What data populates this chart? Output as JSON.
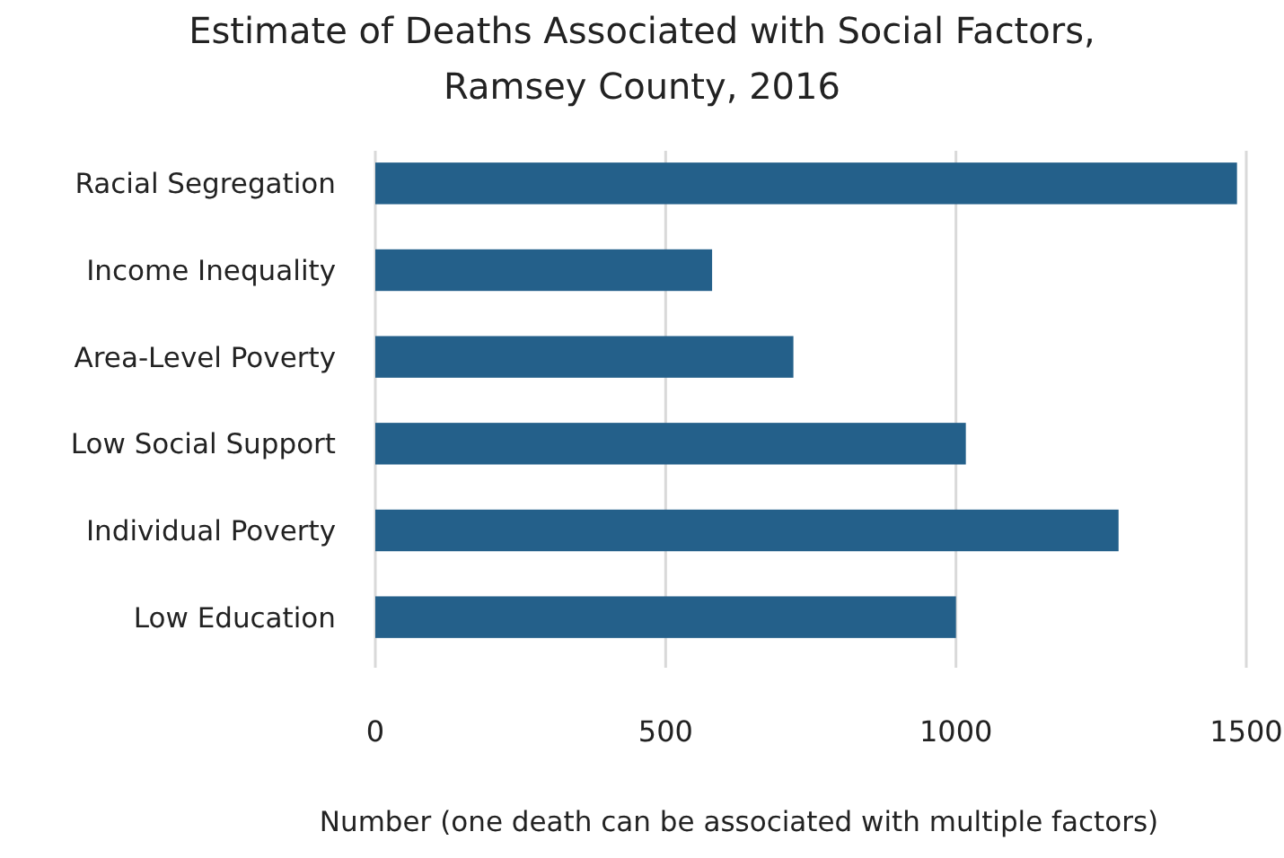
{
  "chart_data": {
    "type": "bar",
    "orientation": "horizontal",
    "title": "Estimate of Deaths Associated with Social Factors,\nRamsey County, 2016",
    "xlabel": "Number (one death can be associated with multiple factors)",
    "categories": [
      "Racial Segregation",
      "Income Inequality",
      "Area-Level Poverty",
      "Low Social Support",
      "Individual Poverty",
      "Low Education"
    ],
    "values": [
      1484,
      580,
      720,
      1017,
      1280,
      1000
    ],
    "color": "#24608a",
    "xlim": [
      0,
      1500
    ],
    "xticks": [
      0,
      500,
      1000,
      1500
    ],
    "grid": "x"
  }
}
